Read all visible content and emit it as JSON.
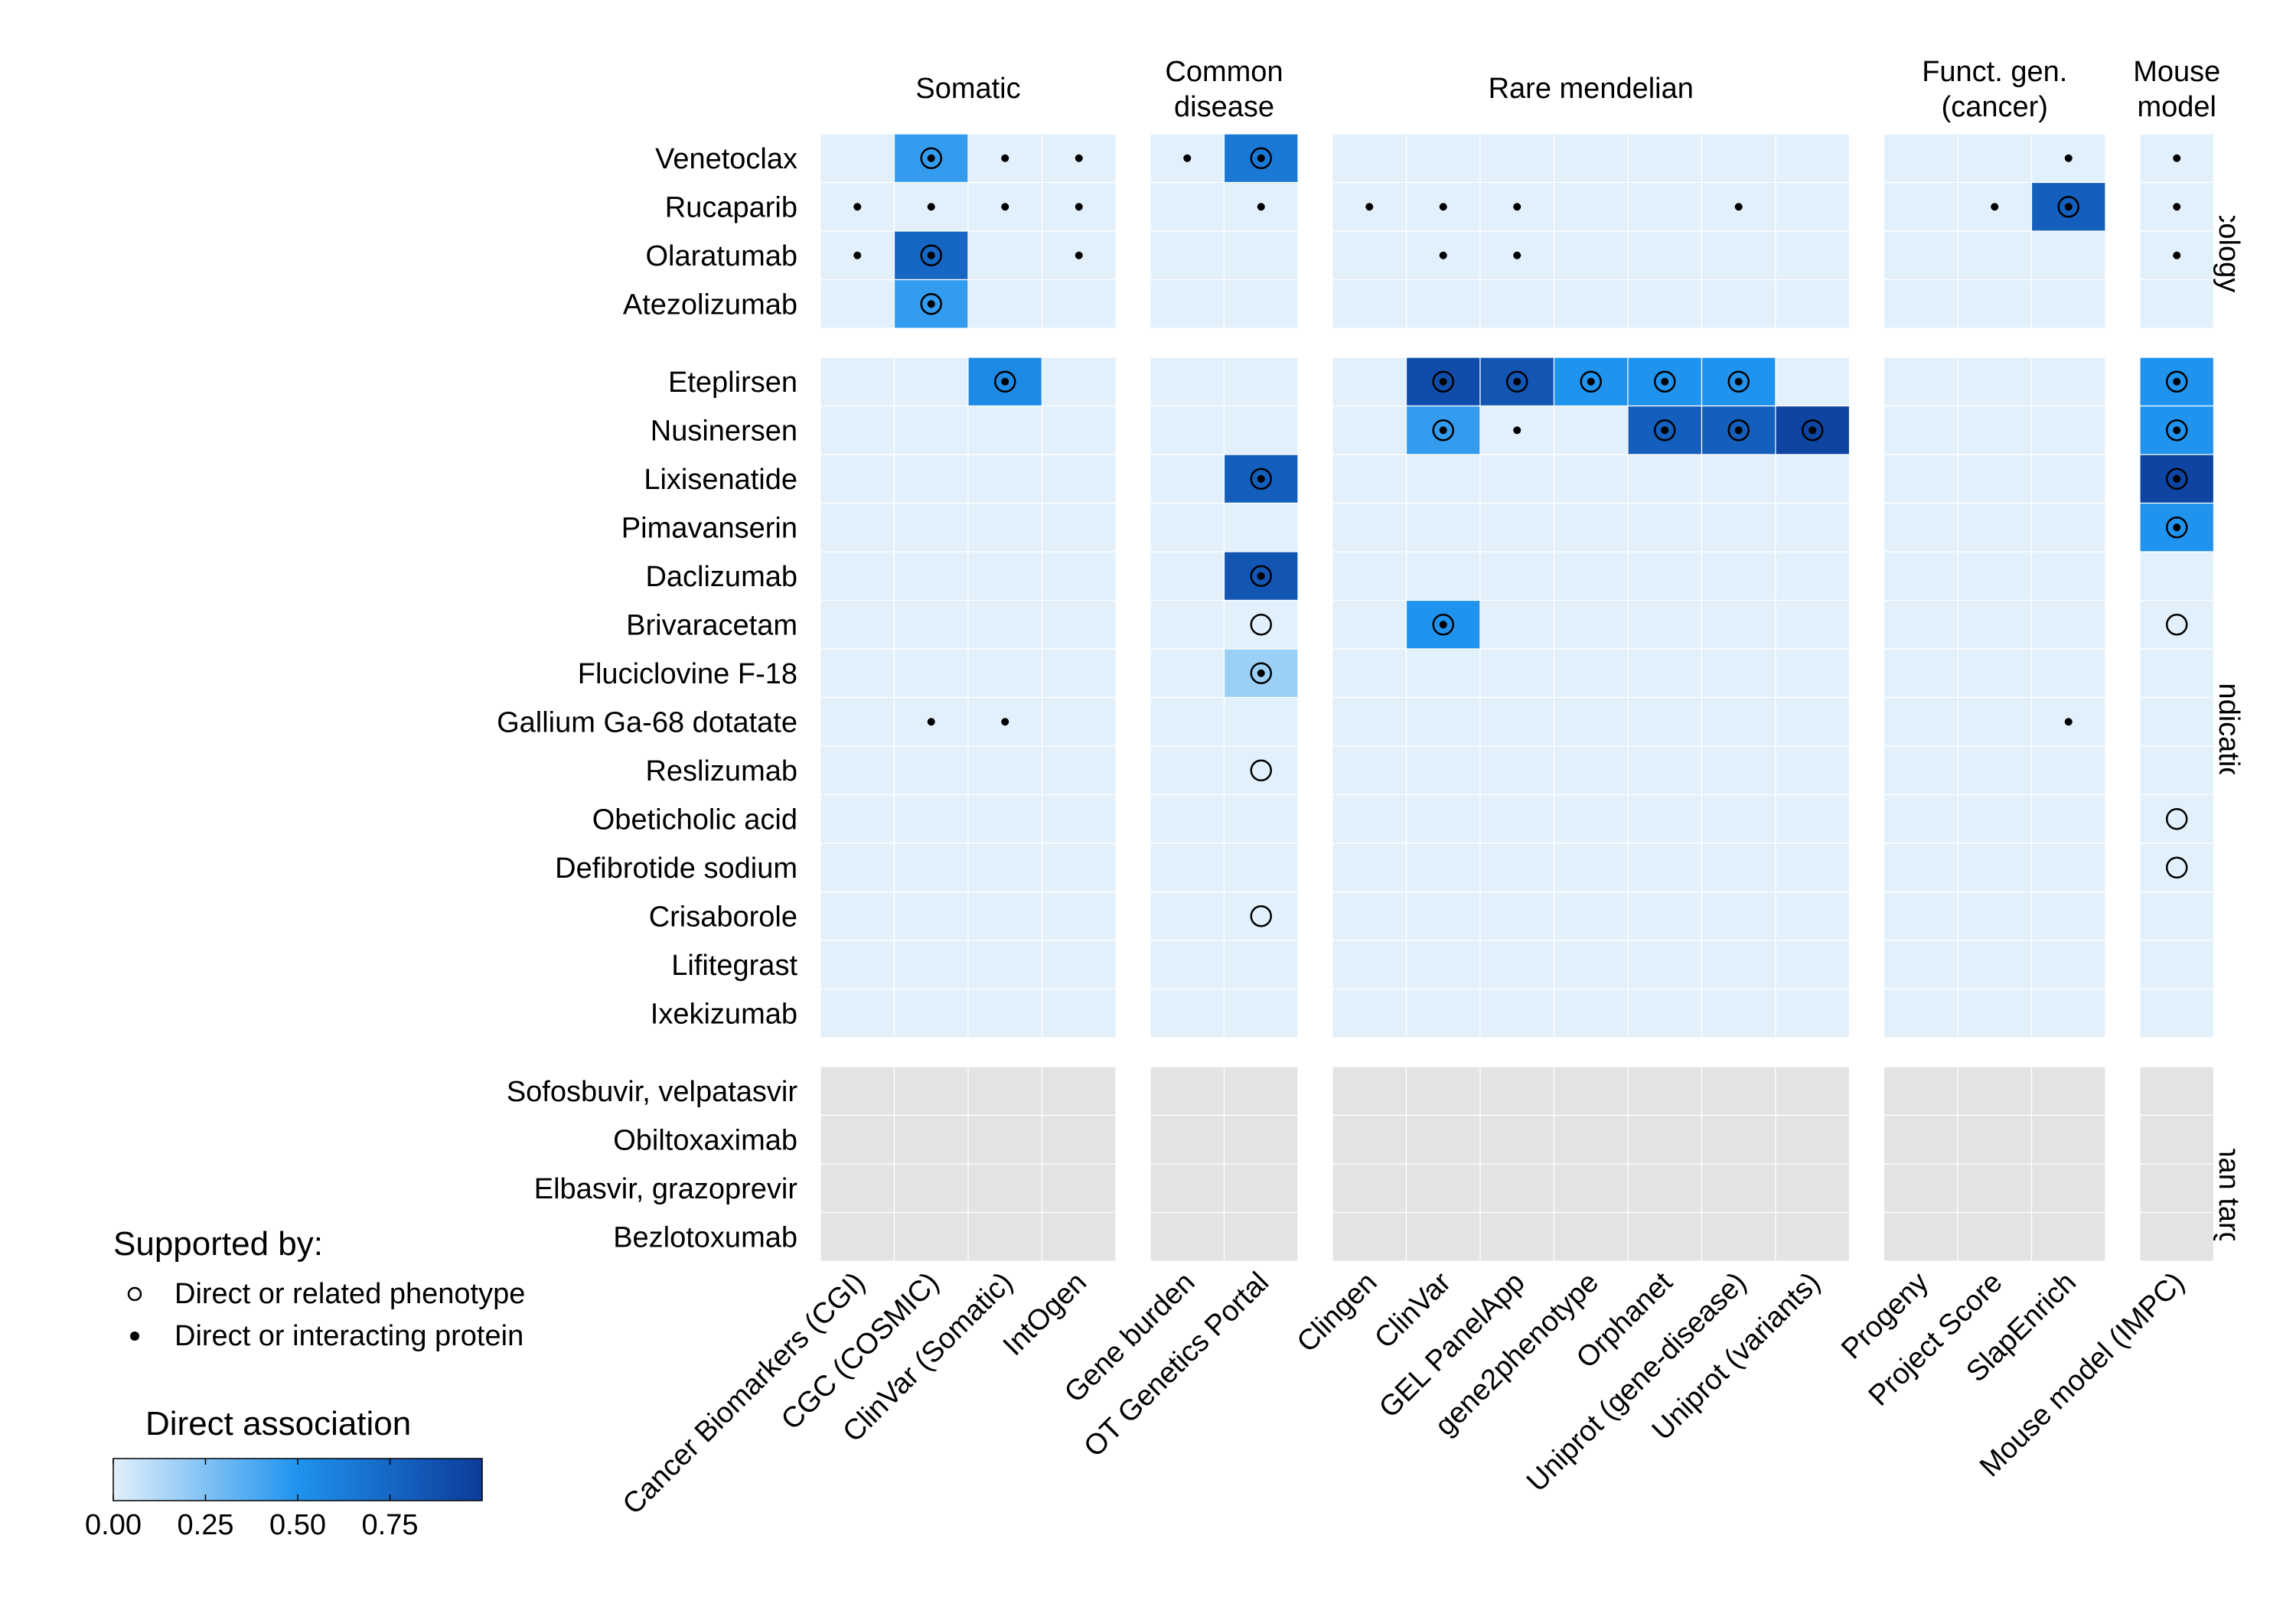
{
  "chart_data": {
    "type": "heatmap",
    "title": "",
    "column_groups": [
      {
        "label": [
          "Somatic"
        ],
        "columns": [
          "Cancer Biomarkers (CGI)",
          "CGC (COSMIC)",
          "ClinVar (Somatic)",
          "IntOgen"
        ]
      },
      {
        "label": [
          "Common",
          "disease"
        ],
        "columns": [
          "Gene burden",
          "OT Genetics Portal"
        ]
      },
      {
        "label": [
          "Rare mendelian"
        ],
        "columns": [
          "Clingen",
          "ClinVar",
          "GEL PanelApp",
          "gene2phenotype",
          "Orphanet",
          "Uniprot (gene-disease)",
          "Uniprot (variants)"
        ]
      },
      {
        "label": [
          "Funct. gen.",
          "(cancer)"
        ],
        "columns": [
          "Progeny",
          "Project Score",
          "SlapEnrich"
        ]
      },
      {
        "label": [
          "Mouse",
          "model"
        ],
        "columns": [
          "Mouse model (IMPC)"
        ]
      }
    ],
    "row_groups": [
      {
        "label": "Oncology",
        "grey": false,
        "rows": [
          "Venetoclax",
          "Rucaparib",
          "Olaratumab",
          "Atezolizumab"
        ]
      },
      {
        "label": "Other indication",
        "grey": false,
        "rows": [
          "Eteplirsen",
          "Nusinersen",
          "Lixisenatide",
          "Pimavanserin",
          "Daclizumab",
          "Brivaracetam",
          "Fluciclovine F-18",
          "Gallium Ga-68 dotatate",
          "Reslizumab",
          "Obeticholic acid",
          "Defibrotide sodium",
          "Crisaborole",
          "Lifitegrast",
          "Ixekizumab"
        ]
      },
      {
        "label": "No human target",
        "grey": true,
        "rows": [
          "Sofosbuvir, velpatasvir",
          "Obiltoxaximab",
          "Elbasvir, grazoprevir",
          "Bezlotoxumab"
        ]
      }
    ],
    "cells": [
      {
        "row": "Venetoclax",
        "col": "CGC (COSMIC)",
        "value": 0.45,
        "marker": "both"
      },
      {
        "row": "Venetoclax",
        "col": "ClinVar (Somatic)",
        "value": 0,
        "marker": "dot"
      },
      {
        "row": "Venetoclax",
        "col": "IntOgen",
        "value": 0,
        "marker": "dot"
      },
      {
        "row": "Venetoclax",
        "col": "Gene burden",
        "value": 0,
        "marker": "dot"
      },
      {
        "row": "Venetoclax",
        "col": "OT Genetics Portal",
        "value": 0.65,
        "marker": "both"
      },
      {
        "row": "Venetoclax",
        "col": "SlapEnrich",
        "value": 0,
        "marker": "dot"
      },
      {
        "row": "Venetoclax",
        "col": "Mouse model (IMPC)",
        "value": 0,
        "marker": "dot"
      },
      {
        "row": "Rucaparib",
        "col": "Cancer Biomarkers (CGI)",
        "value": 0,
        "marker": "dot"
      },
      {
        "row": "Rucaparib",
        "col": "CGC (COSMIC)",
        "value": 0,
        "marker": "dot"
      },
      {
        "row": "Rucaparib",
        "col": "ClinVar (Somatic)",
        "value": 0,
        "marker": "dot"
      },
      {
        "row": "Rucaparib",
        "col": "IntOgen",
        "value": 0,
        "marker": "dot"
      },
      {
        "row": "Rucaparib",
        "col": "OT Genetics Portal",
        "value": 0,
        "marker": "dot"
      },
      {
        "row": "Rucaparib",
        "col": "Clingen",
        "value": 0,
        "marker": "dot"
      },
      {
        "row": "Rucaparib",
        "col": "ClinVar",
        "value": 0,
        "marker": "dot"
      },
      {
        "row": "Rucaparib",
        "col": "GEL PanelApp",
        "value": 0,
        "marker": "dot"
      },
      {
        "row": "Rucaparib",
        "col": "Uniprot (gene-disease)",
        "value": 0,
        "marker": "dot"
      },
      {
        "row": "Rucaparib",
        "col": "Project Score",
        "value": 0,
        "marker": "dot"
      },
      {
        "row": "Rucaparib",
        "col": "SlapEnrich",
        "value": 0.8,
        "marker": "both"
      },
      {
        "row": "Rucaparib",
        "col": "Mouse model (IMPC)",
        "value": 0,
        "marker": "dot"
      },
      {
        "row": "Olaratumab",
        "col": "Cancer Biomarkers (CGI)",
        "value": 0,
        "marker": "dot"
      },
      {
        "row": "Olaratumab",
        "col": "CGC (COSMIC)",
        "value": 0.75,
        "marker": "both"
      },
      {
        "row": "Olaratumab",
        "col": "IntOgen",
        "value": 0,
        "marker": "dot"
      },
      {
        "row": "Olaratumab",
        "col": "ClinVar",
        "value": 0,
        "marker": "dot"
      },
      {
        "row": "Olaratumab",
        "col": "GEL PanelApp",
        "value": 0,
        "marker": "dot"
      },
      {
        "row": "Olaratumab",
        "col": "Mouse model (IMPC)",
        "value": 0,
        "marker": "dot"
      },
      {
        "row": "Atezolizumab",
        "col": "CGC (COSMIC)",
        "value": 0.45,
        "marker": "both"
      },
      {
        "row": "Eteplirsen",
        "col": "ClinVar (Somatic)",
        "value": 0.55,
        "marker": "both"
      },
      {
        "row": "Eteplirsen",
        "col": "ClinVar",
        "value": 0.9,
        "marker": "both"
      },
      {
        "row": "Eteplirsen",
        "col": "GEL PanelApp",
        "value": 0.85,
        "marker": "both"
      },
      {
        "row": "Eteplirsen",
        "col": "gene2phenotype",
        "value": 0.5,
        "marker": "both"
      },
      {
        "row": "Eteplirsen",
        "col": "Orphanet",
        "value": 0.5,
        "marker": "both"
      },
      {
        "row": "Eteplirsen",
        "col": "Uniprot (gene-disease)",
        "value": 0.5,
        "marker": "both"
      },
      {
        "row": "Eteplirsen",
        "col": "Mouse model (IMPC)",
        "value": 0.5,
        "marker": "both"
      },
      {
        "row": "Nusinersen",
        "col": "ClinVar",
        "value": 0.45,
        "marker": "both"
      },
      {
        "row": "Nusinersen",
        "col": "GEL PanelApp",
        "value": 0,
        "marker": "dot"
      },
      {
        "row": "Nusinersen",
        "col": "Orphanet",
        "value": 0.8,
        "marker": "both"
      },
      {
        "row": "Nusinersen",
        "col": "Uniprot (gene-disease)",
        "value": 0.8,
        "marker": "both"
      },
      {
        "row": "Nusinersen",
        "col": "Uniprot (variants)",
        "value": 0.95,
        "marker": "both"
      },
      {
        "row": "Nusinersen",
        "col": "Mouse model (IMPC)",
        "value": 0.5,
        "marker": "both"
      },
      {
        "row": "Lixisenatide",
        "col": "OT Genetics Portal",
        "value": 0.8,
        "marker": "both"
      },
      {
        "row": "Lixisenatide",
        "col": "Mouse model (IMPC)",
        "value": 0.95,
        "marker": "both"
      },
      {
        "row": "Pimavanserin",
        "col": "Mouse model (IMPC)",
        "value": 0.5,
        "marker": "both"
      },
      {
        "row": "Daclizumab",
        "col": "OT Genetics Portal",
        "value": 0.85,
        "marker": "both"
      },
      {
        "row": "Brivaracetam",
        "col": "OT Genetics Portal",
        "value": 0,
        "marker": "circle"
      },
      {
        "row": "Brivaracetam",
        "col": "ClinVar",
        "value": 0.5,
        "marker": "both"
      },
      {
        "row": "Brivaracetam",
        "col": "Mouse model (IMPC)",
        "value": 0,
        "marker": "circle"
      },
      {
        "row": "Fluciclovine F-18",
        "col": "OT Genetics Portal",
        "value": 0.18,
        "marker": "both"
      },
      {
        "row": "Gallium Ga-68 dotatate",
        "col": "CGC (COSMIC)",
        "value": 0,
        "marker": "dot"
      },
      {
        "row": "Gallium Ga-68 dotatate",
        "col": "ClinVar (Somatic)",
        "value": 0,
        "marker": "dot"
      },
      {
        "row": "Gallium Ga-68 dotatate",
        "col": "SlapEnrich",
        "value": 0,
        "marker": "dot"
      },
      {
        "row": "Reslizumab",
        "col": "OT Genetics Portal",
        "value": 0,
        "marker": "circle"
      },
      {
        "row": "Obeticholic acid",
        "col": "Mouse model (IMPC)",
        "value": 0,
        "marker": "circle"
      },
      {
        "row": "Defibrotide sodium",
        "col": "Mouse model (IMPC)",
        "value": 0,
        "marker": "circle"
      },
      {
        "row": "Crisaborole",
        "col": "OT Genetics Portal",
        "value": 0,
        "marker": "circle"
      }
    ],
    "color_scale": {
      "title": "Direct association",
      "min": 0,
      "max": 1,
      "ticks": [
        "0.00",
        "0.25",
        "0.50",
        "0.75"
      ],
      "low_color": "#e2f0fb",
      "mid_color": "#1f93ee",
      "high_color": "#0c3b9a",
      "na_color": "#e3e3e3"
    },
    "legend": {
      "title": "Supported by:",
      "items": [
        {
          "symbol": "circle",
          "label": "Direct or related phenotype"
        },
        {
          "symbol": "dot",
          "label": "Direct or interacting protein"
        }
      ],
      "position": "bottom-left"
    }
  }
}
